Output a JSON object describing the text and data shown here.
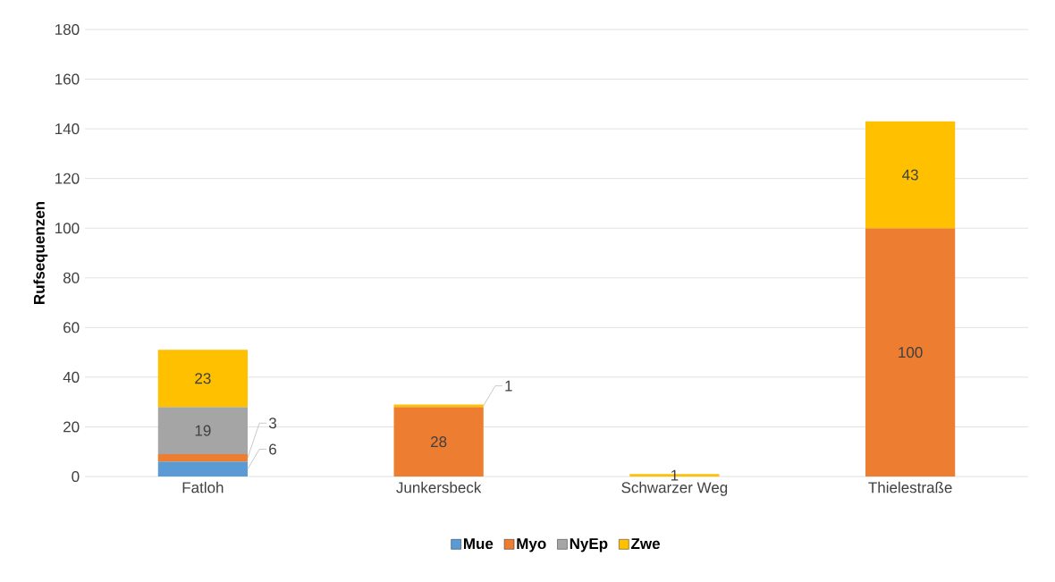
{
  "chart_data": {
    "type": "bar",
    "stacked": true,
    "ylabel": "Rufsequenzen",
    "categories": [
      "Fatloh",
      "Junkersbeck",
      "Schwarzer Weg",
      "Thielestraße"
    ],
    "series": [
      {
        "name": "Mue",
        "color": "#5b9bd5",
        "values": [
          6,
          null,
          null,
          null
        ]
      },
      {
        "name": "Myo",
        "color": "#ed7d31",
        "values": [
          3,
          28,
          null,
          100
        ]
      },
      {
        "name": "NyEp",
        "color": "#a5a5a5",
        "values": [
          19,
          null,
          null,
          null
        ]
      },
      {
        "name": "Zwe",
        "color": "#ffc000",
        "values": [
          23,
          1,
          1,
          43
        ]
      }
    ],
    "ylim": [
      0,
      180
    ],
    "yticks": [
      0,
      20,
      40,
      60,
      80,
      100,
      120,
      140,
      160,
      180
    ],
    "grid": "y",
    "legend": "bottom",
    "data_labels": true
  }
}
